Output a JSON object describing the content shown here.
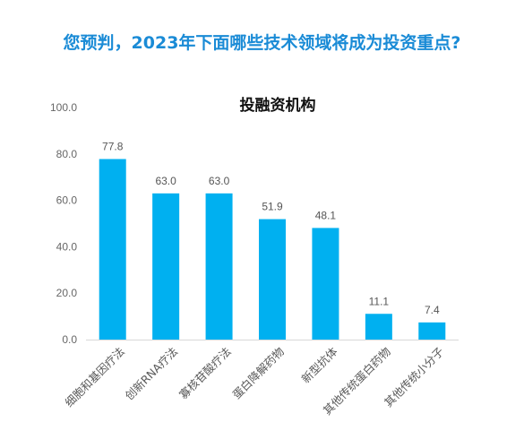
{
  "page": {
    "title": "您预判，2023年下面哪些技术领域将成为投资重点?"
  },
  "colors": {
    "title": "#1a8bd6",
    "bar": "#00b0f0"
  },
  "chart_data": {
    "type": "bar",
    "title": "投融资机构",
    "categories": [
      "细胞和基因疗法",
      "创新RNA疗法",
      "寡核苷酸疗法",
      "蛋白降解药物",
      "新型抗体",
      "其他传统蛋白药物",
      "其他传统小分子"
    ],
    "values": [
      77.8,
      63.0,
      63.0,
      51.9,
      48.1,
      11.1,
      7.4
    ],
    "value_labels": [
      "77.8",
      "63.0",
      "63.0",
      "51.9",
      "48.1",
      "11.1",
      "7.4"
    ],
    "ylim": [
      0,
      100
    ],
    "yticks": [
      "0.0",
      "20.0",
      "40.0",
      "60.0",
      "80.0",
      "100.0"
    ],
    "ytick_values": [
      0,
      20,
      40,
      60,
      80,
      100
    ],
    "grid": false,
    "legend": "none"
  }
}
